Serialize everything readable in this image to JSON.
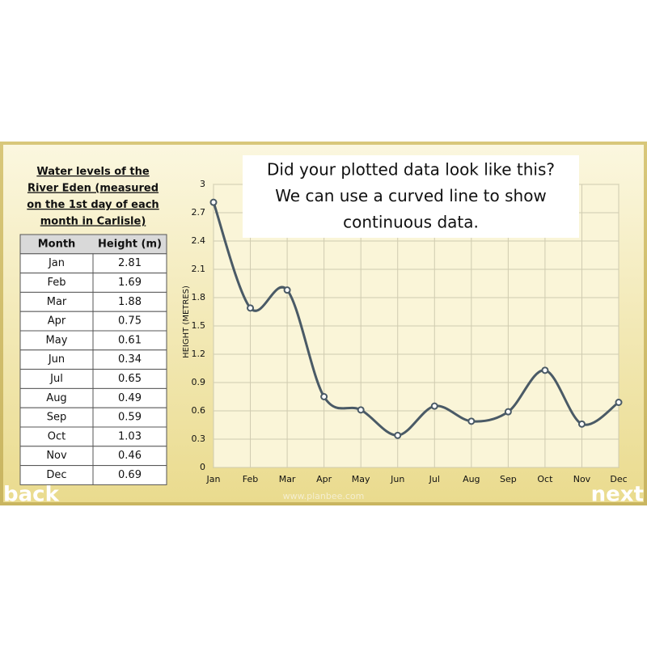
{
  "table": {
    "title": "Water levels of the River Eden (measured on the 1st day of each month in Carlisle)",
    "header": [
      "Month",
      "Height (m)"
    ]
  },
  "callout": [
    "Did your plotted data look like this?",
    "We can use a curved line to show",
    "continuous data."
  ],
  "nav": {
    "back": "back",
    "next": "next",
    "website": "www.planbee.com"
  },
  "chart_data": {
    "type": "line",
    "y_label": "HEIGHT (METRES)",
    "categories": [
      "Jan",
      "Feb",
      "Mar",
      "Apr",
      "May",
      "Jun",
      "Jul",
      "Aug",
      "Sep",
      "Oct",
      "Nov",
      "Dec"
    ],
    "values": [
      2.81,
      1.69,
      1.88,
      0.75,
      0.61,
      0.34,
      0.65,
      0.49,
      0.59,
      1.03,
      0.46,
      0.69
    ],
    "color": "#4a5a66",
    "ylim": [
      0,
      3
    ],
    "yticks": [
      0,
      0.3,
      0.6,
      0.9,
      1.2,
      1.5,
      1.8,
      2.1,
      2.4,
      2.7,
      3
    ],
    "grid": true
  }
}
